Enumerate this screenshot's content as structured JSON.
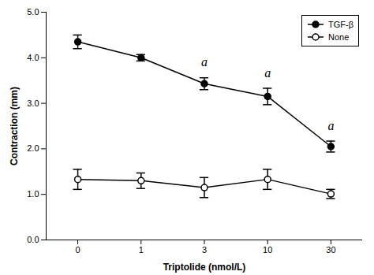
{
  "chart_data": {
    "type": "line",
    "categories": [
      "0",
      "1",
      "3",
      "10",
      "30"
    ],
    "xlabel": "Triptolide (nmol/L)",
    "ylabel": "Contraction (mm)",
    "ylim": [
      0,
      5
    ],
    "yticks": [
      0,
      1,
      2,
      3,
      4,
      5
    ],
    "grid": false,
    "legend": "upper right",
    "series": [
      {
        "name": "TGF-β",
        "color": "black",
        "marker": "circle",
        "values": [
          4.35,
          4.0,
          3.43,
          3.15,
          2.05
        ],
        "errors": [
          0.15,
          0.07,
          0.13,
          0.18,
          0.12
        ]
      },
      {
        "name": "None",
        "color": "black",
        "marker": "open_circle",
        "values": [
          1.33,
          1.3,
          1.15,
          1.33,
          1.01
        ],
        "errors": [
          0.22,
          0.17,
          0.22,
          0.22,
          0.1
        ]
      }
    ],
    "annotations": [
      {
        "text": "a",
        "category": "3",
        "y": 3.82
      },
      {
        "text": "a",
        "category": "10",
        "y": 3.58
      },
      {
        "text": "a",
        "category": "30",
        "y": 2.42
      }
    ]
  }
}
